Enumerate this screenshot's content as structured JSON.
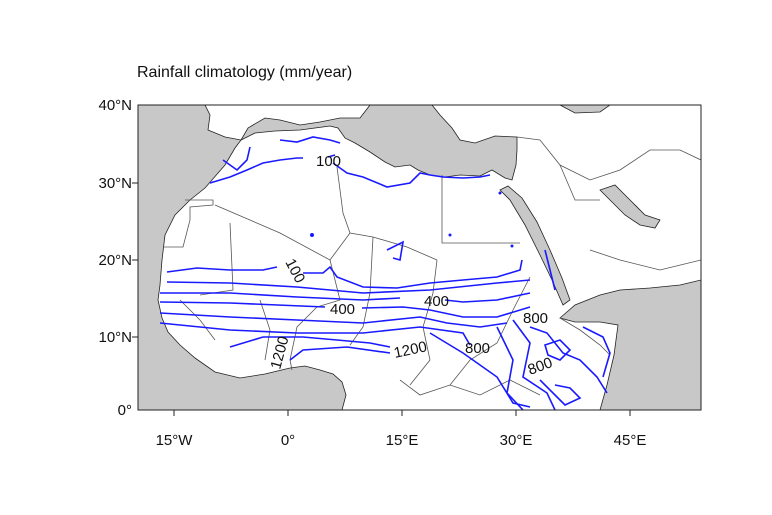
{
  "title": "Rainfall climatology (mm/year)",
  "axes": {
    "y_ticks": [
      "40°N",
      "30°N",
      "20°N",
      "10°N",
      "0°"
    ],
    "x_ticks": [
      "15°W",
      "0°",
      "15°E",
      "30°E",
      "45°E"
    ]
  },
  "contour_labels": [
    "100",
    "100",
    "400",
    "400",
    "1200",
    "1200",
    "800",
    "800",
    "800"
  ],
  "colors": {
    "ocean": "#c8c8c8",
    "land": "#ffffff",
    "contour": "#1a1aff",
    "border": "#555555"
  }
}
